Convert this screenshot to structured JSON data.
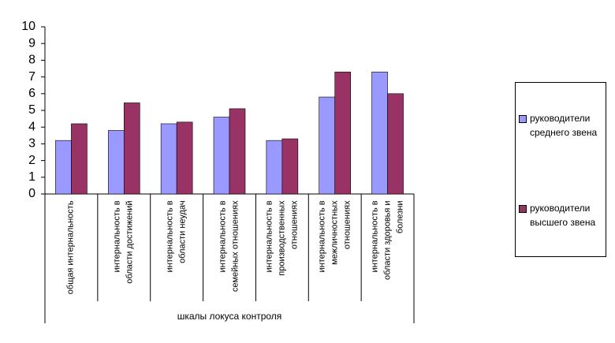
{
  "chart_data": {
    "type": "bar",
    "x_label": "шкалы локуса контроля",
    "categories": [
      "общая интернальность",
      "интернальность в области достижений",
      "интернальность в области неудач",
      "интернальность в семейных отношениях",
      "интернальность в производственных отношениях",
      "интернальность в межличностных отношениях",
      "интернальность в области здоровья и болезни"
    ],
    "series": [
      {
        "name": "руководители среднего звена",
        "color": "#9999ff",
        "values": [
          3.2,
          3.8,
          4.2,
          4.6,
          3.2,
          5.8,
          7.3
        ]
      },
      {
        "name": "руководители высшего звена",
        "color": "#993366",
        "values": [
          4.2,
          5.45,
          4.3,
          5.1,
          3.3,
          7.3,
          6.0
        ]
      }
    ],
    "ylim": [
      0,
      10
    ],
    "yticks": [
      0,
      1,
      2,
      3,
      4,
      5,
      6,
      7,
      8,
      9,
      10
    ],
    "grid": false,
    "legend": "right"
  }
}
